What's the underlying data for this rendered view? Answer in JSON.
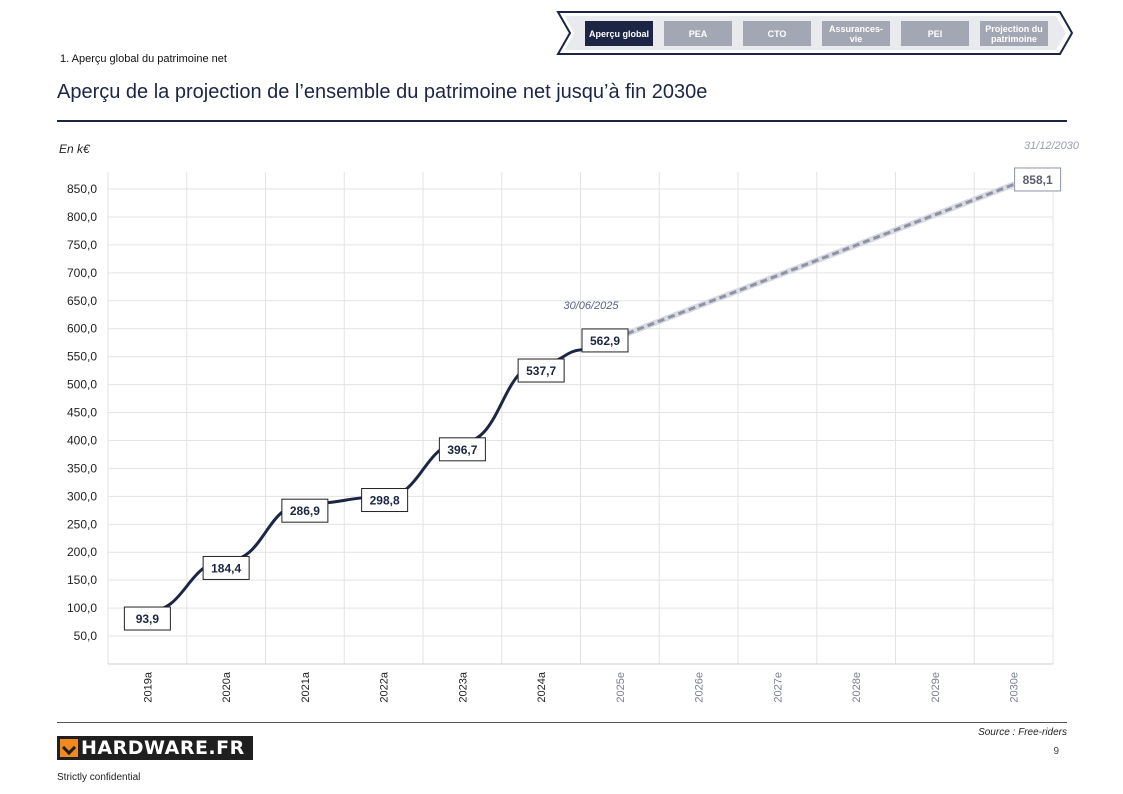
{
  "nav": {
    "tabs": [
      {
        "label": "Aperçu global",
        "active": true
      },
      {
        "label": "PEA",
        "active": false
      },
      {
        "label": "CTO",
        "active": false
      },
      {
        "label": "Assurances-vie",
        "active": false
      },
      {
        "label": "PEI",
        "active": false
      },
      {
        "label": "Projection du patrimoine",
        "active": false
      }
    ]
  },
  "section_label": "1. Aperçu global du patrimoine net",
  "page_title": "Aperçu de la projection de l’ensemble du patrimoine net jusqu’à fin 2030e",
  "unit_label": "En k€",
  "footer": {
    "source": "Source : Free-riders",
    "page_number": "9",
    "logo_text": "HARDWARE.FR",
    "confidential": "Strictly confidential"
  },
  "colors": {
    "navy": "#1d2545",
    "projection": "#a3a7b3",
    "grid": "#e3e3e3",
    "annotation": "#5b5f8a"
  },
  "chart_data": {
    "type": "line",
    "categories": [
      "2019a",
      "2020a",
      "2021a",
      "2022a",
      "2023a",
      "2024a",
      "2025e",
      "2026e",
      "2027e",
      "2028e",
      "2029e",
      "2030e"
    ],
    "series": [
      {
        "style": "solid",
        "points": [
          {
            "x": "2019a",
            "y": 93.9
          },
          {
            "x": "2020a",
            "y": 184.4
          },
          {
            "x": "2021a",
            "y": 286.9
          },
          {
            "x": "2022a",
            "y": 298.8
          },
          {
            "x": "2023a",
            "y": 396.7
          },
          {
            "x": "2024a",
            "y": 537.7
          },
          {
            "x": "30/06/2025",
            "y": 562.9
          }
        ]
      },
      {
        "style": "dashed",
        "points": [
          {
            "x": "30/06/2025",
            "y": 562.9
          },
          {
            "x": "2030e",
            "y": 858.1
          }
        ]
      }
    ],
    "data_labels": [
      {
        "x": "2019a",
        "text": "93,9"
      },
      {
        "x": "2020a",
        "text": "184,4"
      },
      {
        "x": "2021a",
        "text": "286,9"
      },
      {
        "x": "2022a",
        "text": "298,8"
      },
      {
        "x": "2023a",
        "text": "396,7"
      },
      {
        "x": "2024a",
        "text": "537,7"
      },
      {
        "x": "30/06/2025",
        "text": "562,9"
      },
      {
        "x": "2030e",
        "text": "858,1"
      }
    ],
    "annotations": [
      {
        "text": "30/06/2025"
      },
      {
        "text": "31/12/2030"
      }
    ],
    "yticks": [
      "50,0",
      "100,0",
      "150,0",
      "200,0",
      "250,0",
      "300,0",
      "350,0",
      "400,0",
      "450,0",
      "500,0",
      "550,0",
      "600,0",
      "650,0",
      "700,0",
      "750,0",
      "800,0",
      "850,0"
    ],
    "ytick_values": [
      50,
      100,
      150,
      200,
      250,
      300,
      350,
      400,
      450,
      500,
      550,
      600,
      650,
      700,
      750,
      800,
      850
    ],
    "ylim": [
      0,
      850
    ],
    "grid": true
  }
}
